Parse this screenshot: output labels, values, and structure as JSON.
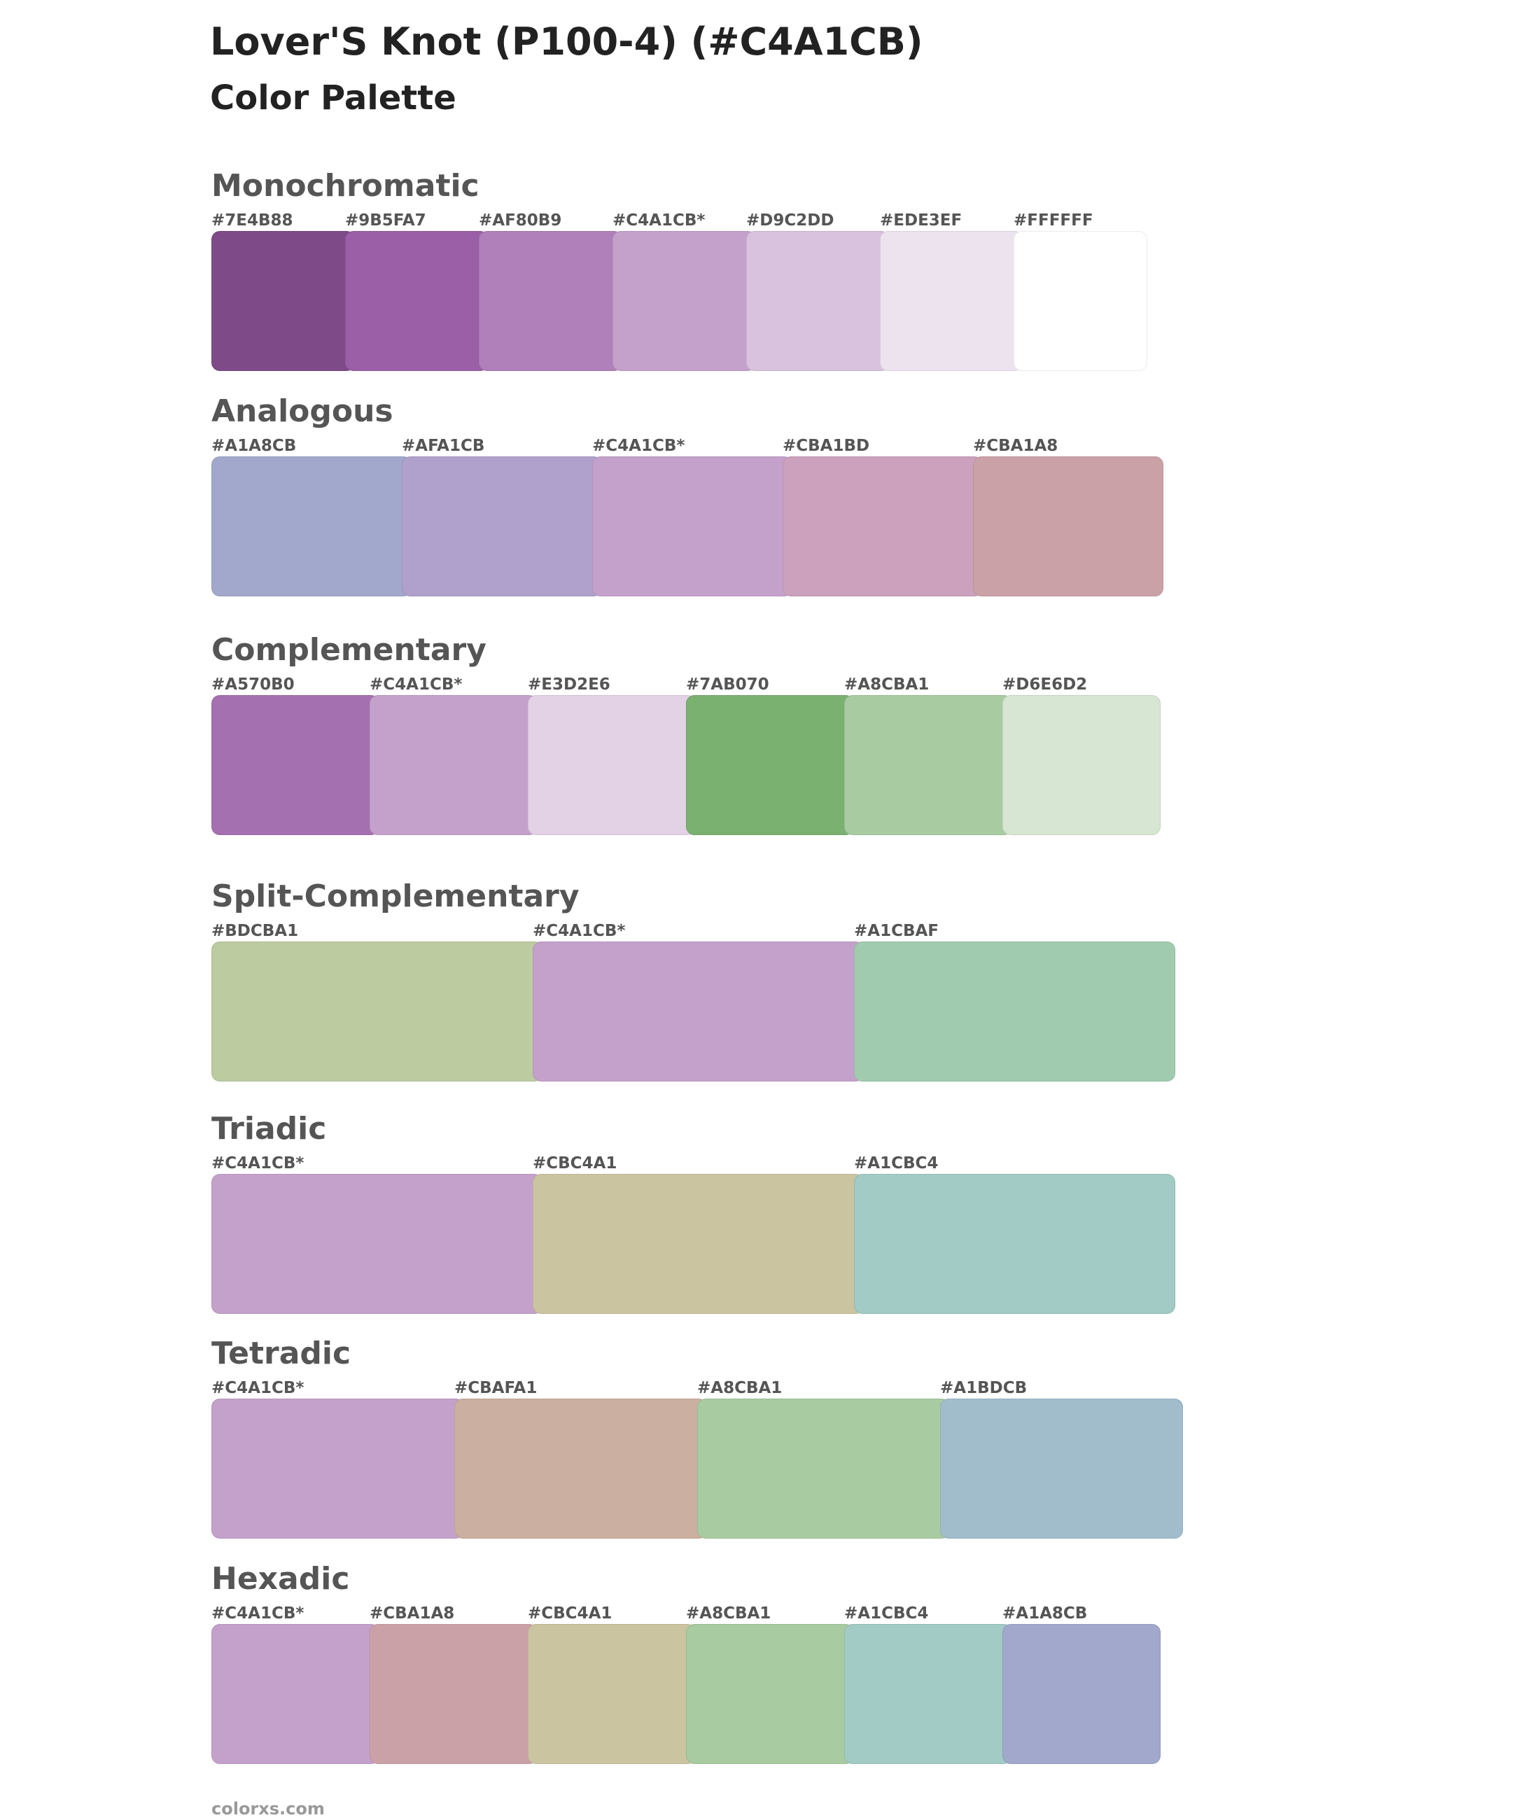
{
  "header": {
    "title": "Lover'S Knot (P100-4) (#C4A1CB)",
    "subtitle": "Color Palette"
  },
  "sections": [
    {
      "title": "Monochromatic",
      "swatches": [
        {
          "label": "#7E4B88",
          "color": "#7E4B88"
        },
        {
          "label": "#9B5FA7",
          "color": "#9B5FA7"
        },
        {
          "label": "#AF80B9",
          "color": "#AF80B9"
        },
        {
          "label": "#C4A1CB*",
          "color": "#C4A1CB"
        },
        {
          "label": "#D9C2DD",
          "color": "#D9C2DD"
        },
        {
          "label": "#EDE3EF",
          "color": "#EDE3EF"
        },
        {
          "label": "#FFFFFF",
          "color": "#FFFFFF"
        }
      ]
    },
    {
      "title": "Analogous",
      "swatches": [
        {
          "label": "#A1A8CB",
          "color": "#A1A8CB"
        },
        {
          "label": "#AFA1CB",
          "color": "#AFA1CB"
        },
        {
          "label": "#C4A1CB*",
          "color": "#C4A1CB"
        },
        {
          "label": "#CBA1BD",
          "color": "#CBA1BD"
        },
        {
          "label": "#CBA1A8",
          "color": "#CBA1A8"
        }
      ]
    },
    {
      "title": "Complementary",
      "swatches": [
        {
          "label": "#A570B0",
          "color": "#A570B0"
        },
        {
          "label": "#C4A1CB*",
          "color": "#C4A1CB"
        },
        {
          "label": "#E3D2E6",
          "color": "#E3D2E6"
        },
        {
          "label": "#7AB070",
          "color": "#7AB070"
        },
        {
          "label": "#A8CBA1",
          "color": "#A8CBA1"
        },
        {
          "label": "#D6E6D2",
          "color": "#D6E6D2"
        }
      ]
    },
    {
      "title": "Split-Complementary",
      "swatches": [
        {
          "label": "#BDCBA1",
          "color": "#BDCBA1"
        },
        {
          "label": "#C4A1CB*",
          "color": "#C4A1CB"
        },
        {
          "label": "#A1CBAF",
          "color": "#A1CBAF"
        }
      ]
    },
    {
      "title": "Triadic",
      "swatches": [
        {
          "label": "#C4A1CB*",
          "color": "#C4A1CB"
        },
        {
          "label": "#CBC4A1",
          "color": "#CBC4A1"
        },
        {
          "label": "#A1CBC4",
          "color": "#A1CBC4"
        }
      ]
    },
    {
      "title": "Tetradic",
      "swatches": [
        {
          "label": "#C4A1CB*",
          "color": "#C4A1CB"
        },
        {
          "label": "#CBAFA1",
          "color": "#CBAFA1"
        },
        {
          "label": "#A8CBA1",
          "color": "#A8CBA1"
        },
        {
          "label": "#A1BDCB",
          "color": "#A1BDCB"
        }
      ]
    },
    {
      "title": "Hexadic",
      "swatches": [
        {
          "label": "#C4A1CB*",
          "color": "#C4A1CB"
        },
        {
          "label": "#CBA1A8",
          "color": "#CBA1A8"
        },
        {
          "label": "#CBC4A1",
          "color": "#CBC4A1"
        },
        {
          "label": "#A8CBA1",
          "color": "#A8CBA1"
        },
        {
          "label": "#A1CBC4",
          "color": "#A1CBC4"
        },
        {
          "label": "#A1A8CB",
          "color": "#A1A8CB"
        }
      ]
    }
  ],
  "footer": "colorxs.com"
}
